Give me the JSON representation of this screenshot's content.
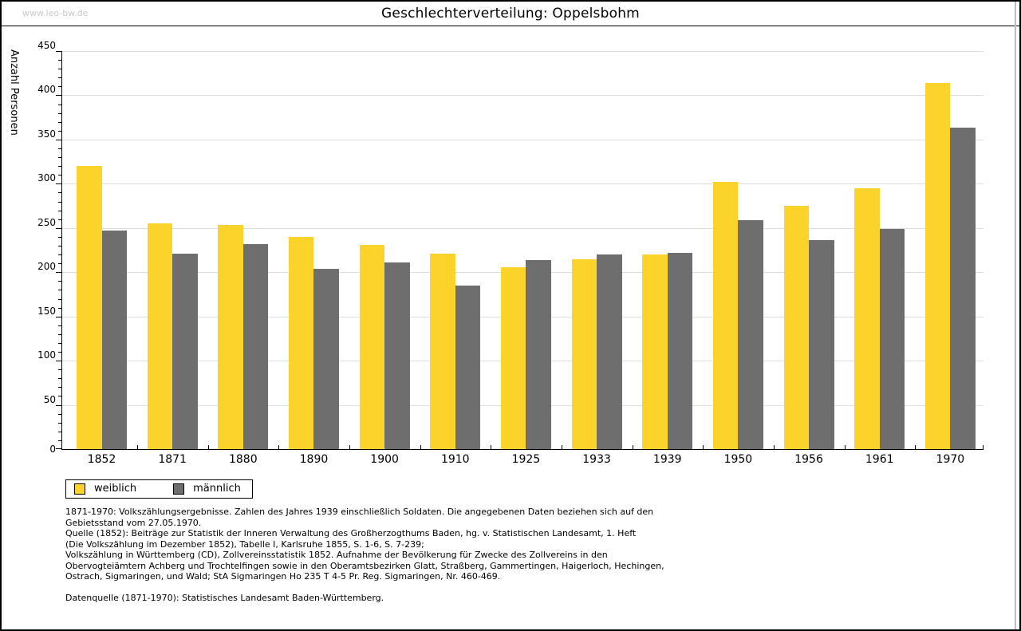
{
  "watermark": "www.leo-bw.de",
  "title": "Geschlechterverteilung: Oppelsbohm",
  "chart_data": {
    "type": "bar",
    "title": "Geschlechterverteilung: Oppelsbohm",
    "xlabel": "",
    "ylabel": "Anzahl Personen",
    "ylim": [
      0,
      450
    ],
    "ytick_step": 50,
    "yminor_step": 10,
    "grid": true,
    "legend_position": "bottom-left",
    "categories": [
      "1852",
      "1871",
      "1880",
      "1890",
      "1900",
      "1910",
      "1925",
      "1933",
      "1939",
      "1950",
      "1956",
      "1961",
      "1970"
    ],
    "series": [
      {
        "name": "weiblich",
        "color": "#fcd32b",
        "values": [
          320,
          255,
          253,
          240,
          231,
          221,
          206,
          215,
          220,
          302,
          275,
          295,
          414
        ]
      },
      {
        "name": "männlich",
        "color": "#6e6e6e",
        "values": [
          247,
          221,
          232,
          204,
          211,
          185,
          214,
          220,
          222,
          259,
          236,
          249,
          363
        ]
      }
    ]
  },
  "colors": {
    "weiblich": "#fcd32b",
    "maennlich": "#6e6e6e",
    "gridline": "#dedede",
    "watermark_text": "#c9c9c9",
    "frame": "#000000"
  },
  "footnotes": {
    "paragraph1": [
      "1871-1970: Volkszählungsergebnisse. Zahlen des Jahres 1939 einschließlich Soldaten. Die angegebenen Daten beziehen sich auf den",
      "Gebietsstand vom 27.05.1970.",
      "Quelle (1852): Beiträge zur Statistik der Inneren Verwaltung des Großherzogthums Baden, hg. v. Statistischen Landesamt, 1. Heft",
      "(Die Volkszählung im Dezember 1852), Tabelle I, Karlsruhe 1855, S. 1-6, S. 7-239;",
      "Volkszählung in Württemberg (CD), Zollvereinsstatistik 1852. Aufnahme der Bevölkerung für Zwecke des Zollvereins in den",
      "Obervogteiämtern Achberg und Trochtelfingen sowie in den Oberamtsbezirken Glatt, Straßberg, Gammertingen, Haigerloch, Hechingen,",
      "Ostrach, Sigmaringen, und Wald; StA Sigmaringen Ho 235 T 4-5 Pr. Reg. Sigmaringen, Nr. 460-469."
    ],
    "paragraph2": [
      "Datenquelle (1871-1970): Statistisches Landesamt Baden-Württemberg."
    ]
  }
}
